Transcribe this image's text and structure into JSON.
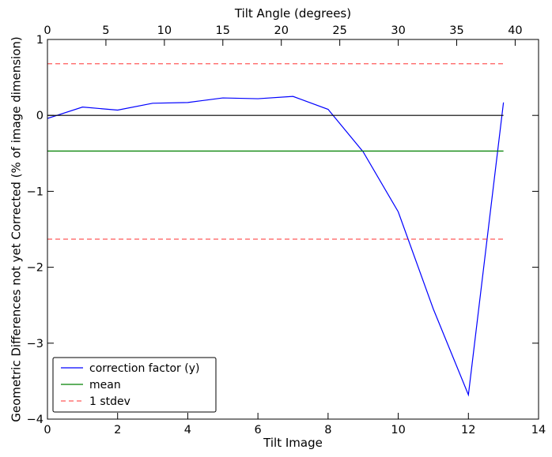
{
  "chart_data": {
    "type": "line",
    "xlabel": "Tilt Image",
    "ylabel": "Geometric Differences not yet Corrected (% of image dimension)",
    "top_xlabel": "Tilt Angle (degrees)",
    "xlim": [
      0,
      14
    ],
    "ylim": [
      -4,
      1
    ],
    "top_xlim": [
      0,
      42
    ],
    "x_ticks": [
      0,
      2,
      4,
      6,
      8,
      10,
      12,
      14
    ],
    "y_ticks": [
      -4,
      -3,
      -2,
      -1,
      0,
      1
    ],
    "top_ticks": [
      0,
      5,
      10,
      15,
      20,
      25,
      30,
      35,
      40
    ],
    "x_tick_labels": [
      "0",
      "2",
      "4",
      "6",
      "8",
      "10",
      "12",
      "14"
    ],
    "y_tick_labels": [
      "−4",
      "−3",
      "−2",
      "−1",
      "0",
      "1"
    ],
    "top_tick_labels": [
      "0",
      "5",
      "10",
      "15",
      "20",
      "25",
      "30",
      "35",
      "40"
    ],
    "grid": false,
    "legend_position": "lower-left",
    "series": [
      {
        "name": "correction factor (y)",
        "color": "#0000ff",
        "style": "solid",
        "x": [
          0,
          1,
          2,
          3,
          4,
          5,
          6,
          7,
          8,
          9,
          10,
          11,
          12,
          13
        ],
        "y": [
          -0.04,
          0.11,
          0.07,
          0.16,
          0.17,
          0.23,
          0.22,
          0.25,
          0.08,
          -0.48,
          -1.27,
          -2.55,
          -3.68,
          0.17
        ]
      },
      {
        "name": "mean",
        "color": "#008000",
        "style": "solid",
        "x": [
          0,
          13
        ],
        "y": [
          -0.47,
          -0.47
        ]
      },
      {
        "name": "1 stdev",
        "color": "#ff0000",
        "style": "dashed",
        "x": [
          0,
          13
        ],
        "y": [
          0.68,
          0.68
        ]
      },
      {
        "name": "",
        "color": "#ff0000",
        "style": "dashed",
        "x": [
          0,
          13
        ],
        "y": [
          -1.63,
          -1.63
        ]
      },
      {
        "name": "",
        "color": "#000000",
        "style": "solid",
        "x": [
          0,
          13
        ],
        "y": [
          0,
          0
        ]
      }
    ],
    "legend": [
      {
        "label": "correction factor (y)",
        "color": "#0000ff",
        "style": "solid"
      },
      {
        "label": "mean",
        "color": "#008000",
        "style": "solid"
      },
      {
        "label": "1 stdev",
        "color": "#ff0000",
        "style": "dashed"
      }
    ]
  }
}
